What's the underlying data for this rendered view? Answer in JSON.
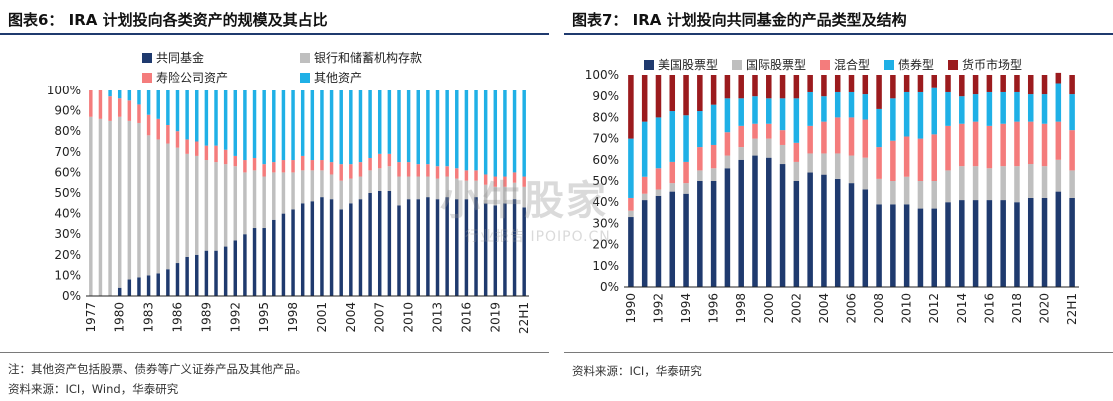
{
  "left": {
    "title": "图表6：  IRA 计划投向各类资产的规模及其占比",
    "note": "注：其他资产包括股票、债券等广义证券产品及其他产品。",
    "source": "资料来源：ICI，Wind，华泰研究",
    "legend": [
      "共同基金",
      "银行和储蓄机构存款",
      "寿险公司资产",
      "其他资产"
    ]
  },
  "right": {
    "title": "图表7：  IRA 计划投向共同基金的产品类型及结构",
    "source": "资料来源：ICI，华泰研究",
    "legend": [
      "美国股票型",
      "国际股票型",
      "混合型",
      "债券型",
      "货币市场型"
    ]
  },
  "watermark": {
    "main": "小牛股家",
    "sub": "行业报告 IPOIPO.CN"
  },
  "colors": {
    "navy": "#1f3a6e",
    "gray": "#bfbfbf",
    "salmon": "#f47c7c",
    "cyan": "#1fb0e6",
    "darkred": "#9b1b1e"
  },
  "chart_data": [
    {
      "type": "bar",
      "stacked": true,
      "x": [
        "1977",
        "1978",
        "1979",
        "1980",
        "1981",
        "1982",
        "1983",
        "1984",
        "1985",
        "1986",
        "1987",
        "1988",
        "1989",
        "1990",
        "1991",
        "1992",
        "1993",
        "1994",
        "1995",
        "1996",
        "1997",
        "1998",
        "1999",
        "2000",
        "2001",
        "2002",
        "2003",
        "2004",
        "2005",
        "2006",
        "2007",
        "2008",
        "2009",
        "2010",
        "2011",
        "2012",
        "2013",
        "2014",
        "2015",
        "2016",
        "2017",
        "2018",
        "2019",
        "2020",
        "2021",
        "22H1"
      ],
      "xticklabels": [
        "1977",
        "1980",
        "1983",
        "1986",
        "1989",
        "1992",
        "1995",
        "1998",
        "2001",
        "2004",
        "2007",
        "2010",
        "2013",
        "2016",
        "2019",
        "22H1"
      ],
      "ylim": [
        0,
        100
      ],
      "yticklabels": [
        "0%",
        "10%",
        "20%",
        "30%",
        "40%",
        "50%",
        "60%",
        "70%",
        "80%",
        "90%",
        "100%"
      ],
      "series": [
        {
          "name": "共同基金",
          "values": [
            0,
            0,
            0,
            4,
            8,
            9,
            10,
            11,
            13,
            16,
            19,
            20,
            22,
            22,
            24,
            27,
            30,
            33,
            33,
            37,
            40,
            42,
            45,
            46,
            48,
            47,
            42,
            45,
            47,
            50,
            51,
            51,
            44,
            47,
            47,
            48,
            47,
            48,
            47,
            47,
            48,
            45,
            44,
            45,
            47,
            43
          ]
        },
        {
          "name": "银行和储蓄机构存款",
          "values": [
            87,
            86,
            85,
            83,
            77,
            75,
            68,
            65,
            61,
            56,
            50,
            48,
            44,
            43,
            40,
            36,
            30,
            28,
            25,
            23,
            20,
            18,
            16,
            15,
            13,
            12,
            14,
            12,
            11,
            11,
            11,
            12,
            14,
            11,
            11,
            10,
            10,
            10,
            10,
            9,
            8,
            9,
            9,
            8,
            8,
            10
          ]
        },
        {
          "name": "寿险公司资产",
          "values": [
            13,
            14,
            12,
            9,
            10,
            9,
            10,
            10,
            9,
            8,
            7,
            7,
            7,
            8,
            7,
            5,
            6,
            6,
            6,
            5,
            6,
            6,
            7,
            5,
            5,
            6,
            8,
            7,
            7,
            6,
            7,
            6,
            7,
            7,
            6,
            6,
            6,
            5,
            5,
            5,
            5,
            5,
            5,
            5,
            5,
            5
          ]
        },
        {
          "name": "其他资产",
          "values": [
            0,
            0,
            3,
            4,
            5,
            7,
            12,
            14,
            17,
            20,
            24,
            25,
            27,
            27,
            29,
            32,
            34,
            33,
            36,
            35,
            34,
            34,
            32,
            34,
            34,
            35,
            36,
            36,
            35,
            33,
            31,
            31,
            35,
            35,
            36,
            36,
            37,
            37,
            38,
            39,
            39,
            41,
            42,
            42,
            40,
            42
          ]
        }
      ]
    },
    {
      "type": "bar",
      "stacked": true,
      "x": [
        "1990",
        "1991",
        "1992",
        "1993",
        "1994",
        "1995",
        "1996",
        "1997",
        "1998",
        "1999",
        "2000",
        "2001",
        "2002",
        "2003",
        "2004",
        "2005",
        "2006",
        "2007",
        "2008",
        "2009",
        "2010",
        "2011",
        "2012",
        "2013",
        "2014",
        "2015",
        "2016",
        "2017",
        "2018",
        "2019",
        "2020",
        "2021",
        "22H1"
      ],
      "xticklabels": [
        "1990",
        "1992",
        "1994",
        "1996",
        "1998",
        "2000",
        "2002",
        "2004",
        "2006",
        "2008",
        "2010",
        "2012",
        "2014",
        "2016",
        "2018",
        "2020",
        "22H1"
      ],
      "ylim": [
        0,
        100
      ],
      "yticklabels": [
        "0%",
        "10%",
        "20%",
        "30%",
        "40%",
        "50%",
        "60%",
        "70%",
        "80%",
        "90%",
        "100%"
      ],
      "series": [
        {
          "name": "美国股票型",
          "values": [
            33,
            41,
            43,
            45,
            44,
            50,
            50,
            56,
            60,
            62,
            61,
            58,
            50,
            54,
            53,
            51,
            49,
            46,
            39,
            39,
            39,
            37,
            37,
            40,
            41,
            41,
            41,
            41,
            40,
            42,
            42,
            45,
            42
          ]
        },
        {
          "name": "国际股票型",
          "values": [
            3,
            3,
            3,
            4,
            5,
            5,
            6,
            6,
            6,
            8,
            9,
            9,
            9,
            9,
            10,
            12,
            13,
            15,
            12,
            11,
            13,
            13,
            13,
            15,
            16,
            16,
            15,
            16,
            17,
            16,
            15,
            15,
            13
          ]
        },
        {
          "name": "混合型",
          "values": [
            6,
            8,
            10,
            10,
            10,
            11,
            11,
            11,
            10,
            7,
            7,
            7,
            9,
            13,
            15,
            17,
            18,
            18,
            15,
            19,
            19,
            20,
            22,
            21,
            20,
            21,
            20,
            20,
            21,
            20,
            20,
            18,
            19
          ]
        },
        {
          "name": "债券型",
          "values": [
            28,
            26,
            24,
            24,
            22,
            17,
            19,
            16,
            13,
            13,
            12,
            15,
            21,
            16,
            12,
            12,
            12,
            12,
            18,
            20,
            21,
            22,
            22,
            16,
            13,
            13,
            16,
            15,
            14,
            13,
            14,
            18,
            17
          ]
        },
        {
          "name": "货币市场型",
          "values": [
            30,
            22,
            20,
            17,
            19,
            17,
            14,
            11,
            11,
            10,
            11,
            11,
            11,
            8,
            10,
            8,
            8,
            9,
            16,
            11,
            8,
            8,
            6,
            8,
            10,
            9,
            8,
            8,
            8,
            9,
            9,
            5,
            9
          ]
        }
      ]
    }
  ]
}
